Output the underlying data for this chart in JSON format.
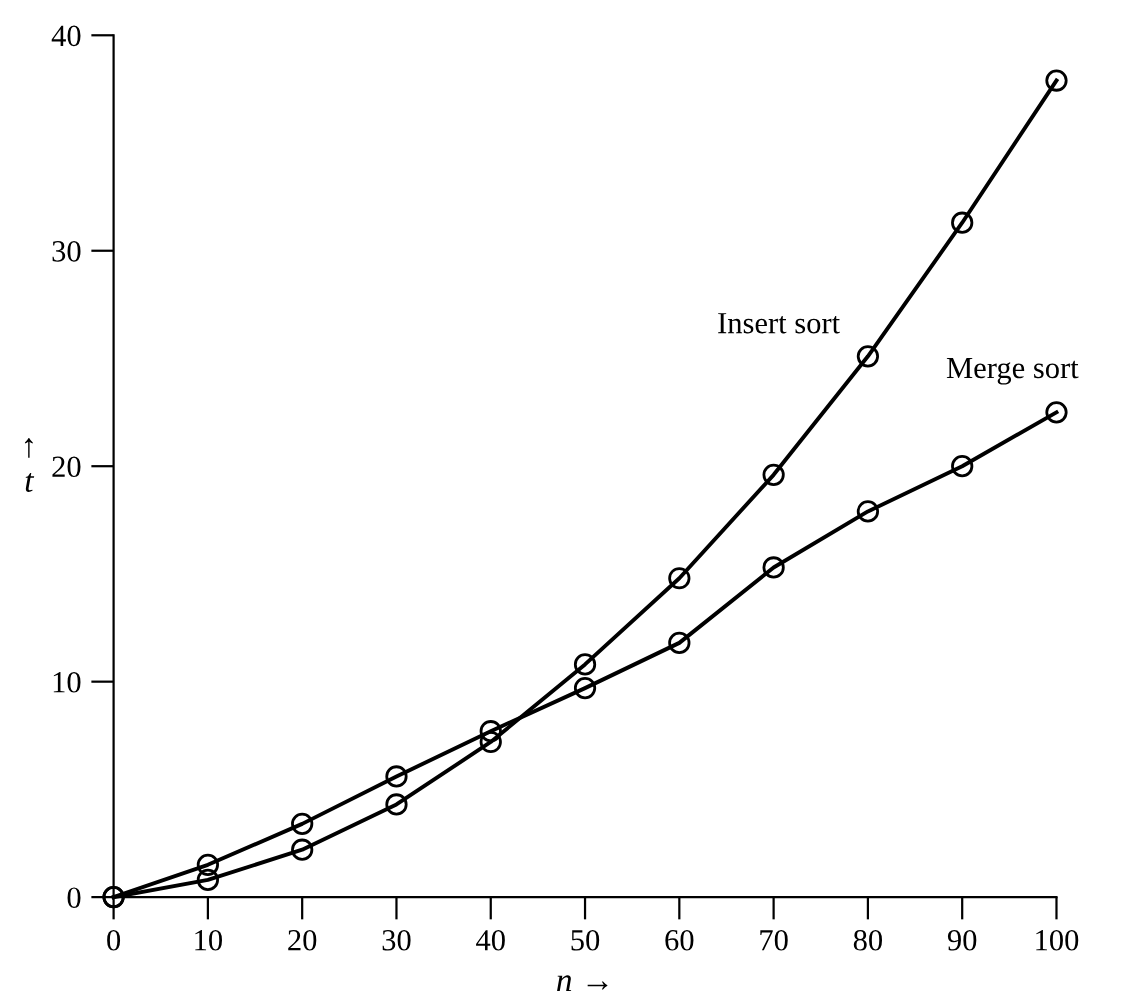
{
  "chart_data": {
    "type": "line",
    "xlabel": "n →",
    "ylabel": "↑\nt",
    "x": [
      0,
      10,
      20,
      30,
      40,
      50,
      60,
      70,
      80,
      90,
      100
    ],
    "series": [
      {
        "name": "Insert sort",
        "color": "#000000",
        "values": [
          0,
          0.8,
          2.2,
          4.3,
          7.2,
          10.8,
          14.8,
          19.6,
          25.1,
          31.3,
          37.9
        ]
      },
      {
        "name": "Merge sort",
        "color": "#000000",
        "values": [
          0,
          1.5,
          3.4,
          5.6,
          7.7,
          9.7,
          11.8,
          15.3,
          17.9,
          20.0,
          22.5
        ]
      }
    ],
    "xlim": [
      0,
      100
    ],
    "ylim": [
      0,
      40
    ],
    "xticks": [
      0,
      10,
      20,
      30,
      40,
      50,
      60,
      70,
      80,
      90,
      100
    ],
    "yticks": [
      0,
      10,
      20,
      30,
      40
    ],
    "marker": "circle",
    "line_style": "solid",
    "grid": false,
    "legend": false
  }
}
